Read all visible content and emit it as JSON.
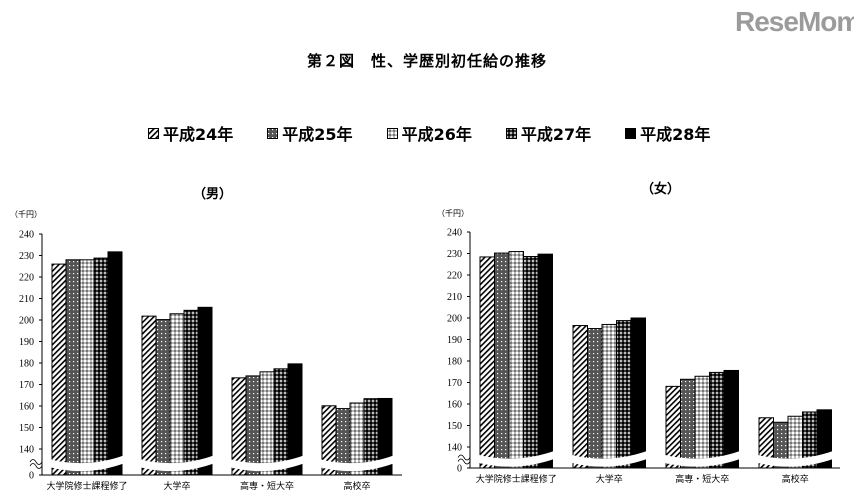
{
  "title": "第２図　性、学歴別初任給の推移",
  "chart_data": [
    {
      "type": "bar",
      "subtitle": "（男）",
      "unit_label": "（千円）",
      "categories": [
        "大学院修士課程修了",
        "大学卒",
        "高専・短大卒",
        "高校卒"
      ],
      "ylim": [
        0,
        240
      ],
      "axis_break": [
        0,
        140
      ],
      "yticks": [
        0,
        140,
        150,
        160,
        170,
        180,
        190,
        200,
        210,
        220,
        230,
        240
      ],
      "grid": false,
      "legend_position": "top",
      "series": [
        {
          "name": "平成24年",
          "values": [
            226.0,
            201.8,
            173.1,
            160.1
          ]
        },
        {
          "name": "平成25年",
          "values": [
            228.0,
            200.2,
            174.0,
            158.8
          ]
        },
        {
          "name": "平成26年",
          "values": [
            228.0,
            202.9,
            175.9,
            161.4
          ]
        },
        {
          "name": "平成27年",
          "values": [
            228.8,
            204.5,
            177.3,
            163.4
          ]
        },
        {
          "name": "平成28年",
          "values": [
            231.7,
            205.9,
            179.6,
            163.5
          ]
        }
      ]
    },
    {
      "type": "bar",
      "subtitle": "（女）",
      "unit_label": "（千円）",
      "categories": [
        "大学院修士課程修了",
        "大学卒",
        "高専・短大卒",
        "高校卒"
      ],
      "ylim": [
        0,
        240
      ],
      "axis_break": [
        0,
        140
      ],
      "yticks": [
        0,
        140,
        150,
        160,
        170,
        180,
        190,
        200,
        210,
        220,
        230,
        240
      ],
      "grid": false,
      "legend_position": "top",
      "series": [
        {
          "name": "平成24年",
          "values": [
            228.4,
            196.5,
            168.2,
            153.6
          ]
        },
        {
          "name": "平成25年",
          "values": [
            230.2,
            195.1,
            171.5,
            151.5
          ]
        },
        {
          "name": "平成26年",
          "values": [
            230.9,
            197.0,
            172.9,
            154.3
          ]
        },
        {
          "name": "平成27年",
          "values": [
            228.6,
            198.8,
            174.7,
            156.3
          ]
        },
        {
          "name": "平成28年",
          "values": [
            229.7,
            200.0,
            175.6,
            157.3
          ]
        }
      ]
    }
  ],
  "legend": [
    "平成24年",
    "平成25年",
    "平成26年",
    "平成27年",
    "平成28年"
  ],
  "series_patterns": [
    "diagonal-hatch",
    "dark-dotted",
    "light-checker",
    "dark-checker",
    "solid-black"
  ],
  "watermark": "ReseMom"
}
